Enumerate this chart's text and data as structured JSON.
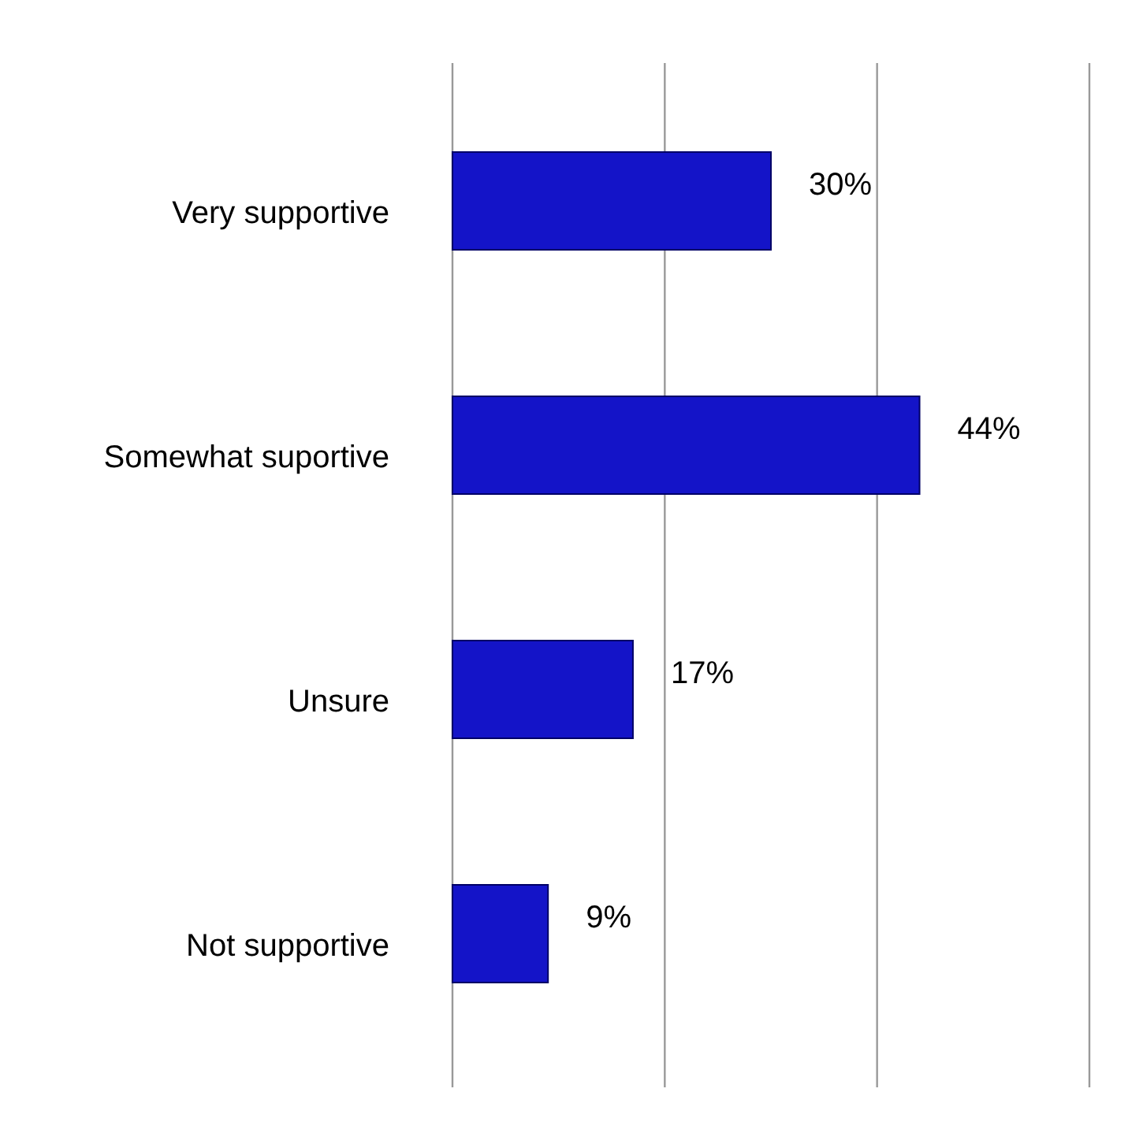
{
  "chart_data": {
    "type": "bar",
    "orientation": "horizontal",
    "categories": [
      "Very supportive",
      "Somewhat suportive",
      "Unsure",
      "Not supportive"
    ],
    "values": [
      30,
      44,
      17,
      9
    ],
    "value_labels": [
      "30%",
      "44%",
      "17%",
      "9%"
    ],
    "color": "#1414c8",
    "xlim": [
      0,
      60
    ],
    "xticks": [
      {
        "value": 0,
        "label": null
      },
      {
        "value": 20,
        "label": null
      },
      {
        "value": 40,
        "label": null
      },
      {
        "value": 60,
        "label": null
      }
    ],
    "grid": "x",
    "tick_labels": "y"
  }
}
